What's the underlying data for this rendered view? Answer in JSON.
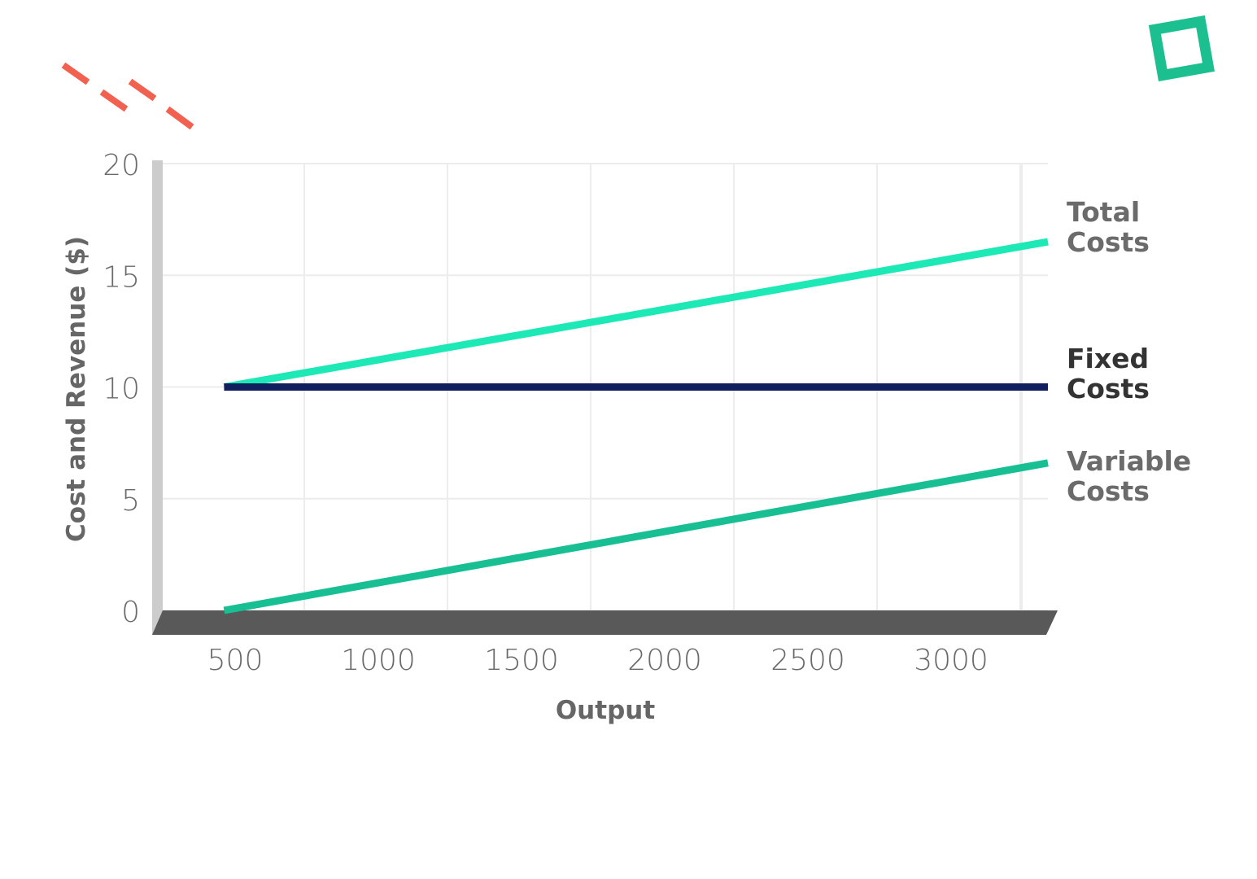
{
  "chart_data": {
    "type": "line",
    "title": "",
    "xlabel": "Output",
    "ylabel": "Cost and Revenue ($)",
    "xticks": [
      500,
      1000,
      1500,
      2000,
      2500,
      3000
    ],
    "yticks": [
      0,
      5,
      10,
      15,
      20
    ],
    "xlim": [
      200,
      3300
    ],
    "ylim": [
      0,
      20
    ],
    "grid": true,
    "legend": "line-end labels on the right",
    "series": [
      {
        "name": "Total Costs",
        "label_lines": [
          "Total",
          "Costs"
        ],
        "color": "#1de9b6",
        "label_color": "#6b6b6b",
        "x": [
          220,
          3300
        ],
        "y": [
          10,
          16.5
        ]
      },
      {
        "name": "Fixed Costs",
        "label_lines": [
          "Fixed",
          "Costs"
        ],
        "color": "#111f5e",
        "label_color": "#333333",
        "x": [
          220,
          3300
        ],
        "y": [
          10,
          10
        ]
      },
      {
        "name": "Variable Costs",
        "label_lines": [
          "Variable",
          "Costs"
        ],
        "color": "#17bf93",
        "label_color": "#6b6b6b",
        "x": [
          220,
          3300
        ],
        "y": [
          0,
          6.6
        ]
      }
    ]
  },
  "colors": {
    "grid": "#ececec",
    "axis_bar": "#cccccc",
    "floor": "#595959",
    "decor_dash": "#f26150",
    "decor_square": "#1cbf8f"
  },
  "decor": [
    "dashed-lines",
    "square-outline"
  ]
}
